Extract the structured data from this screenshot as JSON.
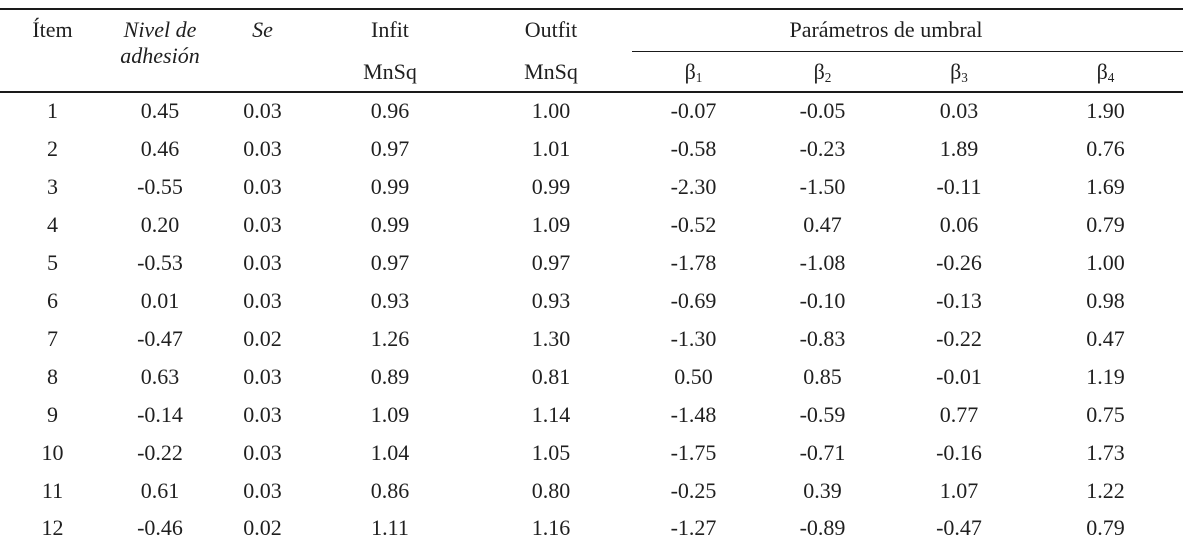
{
  "colors": {
    "background": "#ffffff",
    "text": "#1f1f1f",
    "rule": "#1a1a1a"
  },
  "table": {
    "headers": {
      "item": "Ítem",
      "nivel_line1": "Nivel de",
      "nivel_line2": "adhesión",
      "se": "Se",
      "infit": "Infit",
      "outfit": "Outfit",
      "mnsq": "MnSq",
      "umbral_group": "Parámetros de umbral",
      "beta_symbol": "β",
      "beta_subscripts": [
        "1",
        "2",
        "3",
        "4"
      ]
    },
    "column_keys": [
      "item",
      "nivel",
      "se",
      "infit",
      "outfit",
      "b1",
      "b2",
      "b3",
      "b4"
    ],
    "rows": [
      {
        "item": "1",
        "nivel": "0.45",
        "se": "0.03",
        "infit": "0.96",
        "outfit": "1.00",
        "b1": "-0.07",
        "b2": "-0.05",
        "b3": "0.03",
        "b4": "1.90"
      },
      {
        "item": "2",
        "nivel": "0.46",
        "se": "0.03",
        "infit": "0.97",
        "outfit": "1.01",
        "b1": "-0.58",
        "b2": "-0.23",
        "b3": "1.89",
        "b4": "0.76"
      },
      {
        "item": "3",
        "nivel": "-0.55",
        "se": "0.03",
        "infit": "0.99",
        "outfit": "0.99",
        "b1": "-2.30",
        "b2": "-1.50",
        "b3": "-0.11",
        "b4": "1.69"
      },
      {
        "item": "4",
        "nivel": "0.20",
        "se": "0.03",
        "infit": "0.99",
        "outfit": "1.09",
        "b1": "-0.52",
        "b2": "0.47",
        "b3": "0.06",
        "b4": "0.79"
      },
      {
        "item": "5",
        "nivel": "-0.53",
        "se": "0.03",
        "infit": "0.97",
        "outfit": "0.97",
        "b1": "-1.78",
        "b2": "-1.08",
        "b3": "-0.26",
        "b4": "1.00"
      },
      {
        "item": "6",
        "nivel": "0.01",
        "se": "0.03",
        "infit": "0.93",
        "outfit": "0.93",
        "b1": "-0.69",
        "b2": "-0.10",
        "b3": "-0.13",
        "b4": "0.98"
      },
      {
        "item": "7",
        "nivel": "-0.47",
        "se": "0.02",
        "infit": "1.26",
        "outfit": "1.30",
        "b1": "-1.30",
        "b2": "-0.83",
        "b3": "-0.22",
        "b4": "0.47"
      },
      {
        "item": "8",
        "nivel": "0.63",
        "se": "0.03",
        "infit": "0.89",
        "outfit": "0.81",
        "b1": "0.50",
        "b2": "0.85",
        "b3": "-0.01",
        "b4": "1.19"
      },
      {
        "item": "9",
        "nivel": "-0.14",
        "se": "0.03",
        "infit": "1.09",
        "outfit": "1.14",
        "b1": "-1.48",
        "b2": "-0.59",
        "b3": "0.77",
        "b4": "0.75"
      },
      {
        "item": "10",
        "nivel": "-0.22",
        "se": "0.03",
        "infit": "1.04",
        "outfit": "1.05",
        "b1": "-1.75",
        "b2": "-0.71",
        "b3": "-0.16",
        "b4": "1.73"
      },
      {
        "item": "11",
        "nivel": "0.61",
        "se": "0.03",
        "infit": "0.86",
        "outfit": "0.80",
        "b1": "-0.25",
        "b2": "0.39",
        "b3": "1.07",
        "b4": "1.22"
      },
      {
        "item": "12",
        "nivel": "-0.46",
        "se": "0.02",
        "infit": "1.11",
        "outfit": "1.16",
        "b1": "-1.27",
        "b2": "-0.89",
        "b3": "-0.47",
        "b4": "0.79"
      }
    ]
  }
}
